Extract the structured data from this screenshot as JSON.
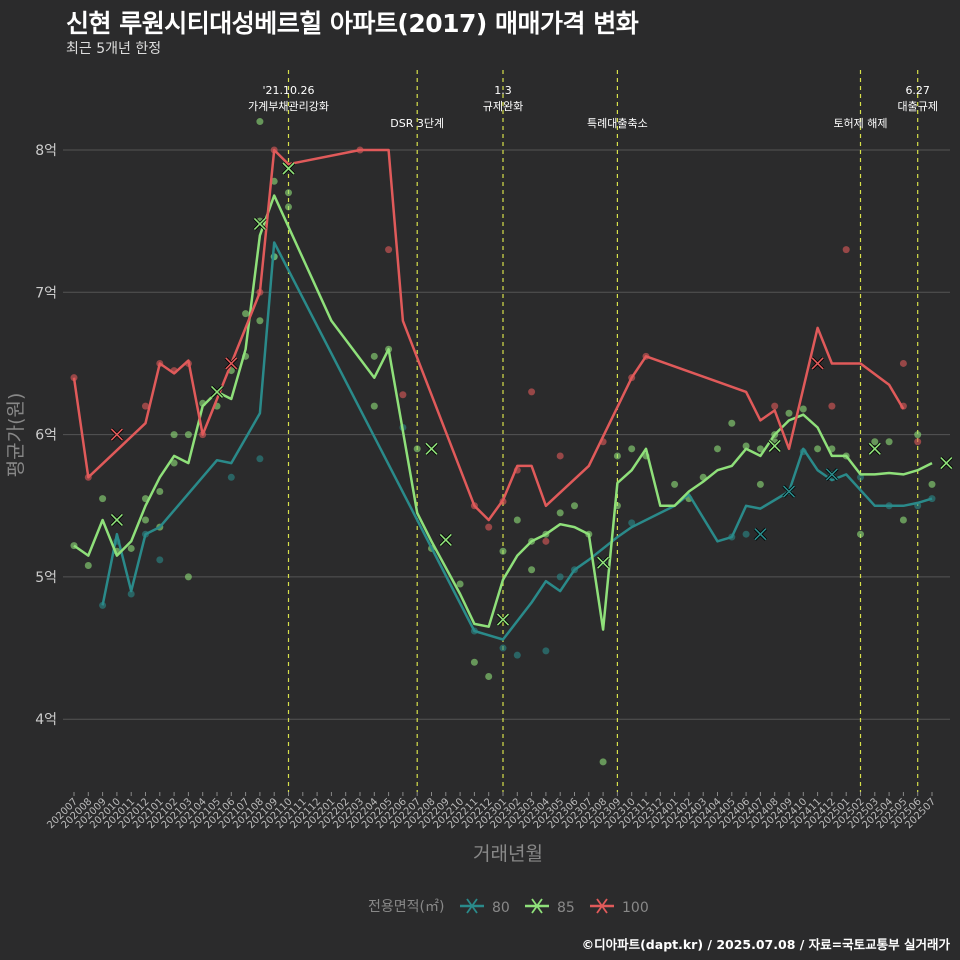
{
  "title": "신현 루원시티대성베르힐 아파트(2017) 매매가격 변화",
  "subtitle": "최근 5개년 한정",
  "caption": "©디아파트(dapt.kr) / 2025.07.08 / 자료=국토교통부 실거래가",
  "colors": {
    "80": "#2a8a8a",
    "85": "#8fe07a",
    "100": "#e05a5a",
    "vline": "#d7e04a",
    "grid": "#555555"
  },
  "chart_data": {
    "type": "line",
    "title": "신현 루원시티대성베르힐 아파트(2017) 매매가격 변화",
    "subtitle": "최근 5개년 한정",
    "xlabel": "거래년월",
    "ylabel": "평균가(원)",
    "ylim": [
      3.5,
      8.5
    ],
    "y_ticks": [
      4,
      5,
      6,
      7,
      8
    ],
    "y_tick_labels": [
      "4억",
      "5억",
      "6억",
      "7억",
      "8억"
    ],
    "x": [
      "202007",
      "202008",
      "202009",
      "202010",
      "202011",
      "202012",
      "202101",
      "202102",
      "202103",
      "202104",
      "202105",
      "202106",
      "202107",
      "202108",
      "202109",
      "202110",
      "202111",
      "202112",
      "202201",
      "202202",
      "202203",
      "202204",
      "202205",
      "202206",
      "202207",
      "202208",
      "202209",
      "202210",
      "202211",
      "202212",
      "202301",
      "202302",
      "202303",
      "202304",
      "202305",
      "202306",
      "202307",
      "202308",
      "202309",
      "202310",
      "202311",
      "202312",
      "202401",
      "202402",
      "202403",
      "202404",
      "202405",
      "202406",
      "202407",
      "202408",
      "202409",
      "202410",
      "202411",
      "202412",
      "202501",
      "202502",
      "202503",
      "202504",
      "202505",
      "202506",
      "202507"
    ],
    "legend": {
      "title": "전용면적(㎡)",
      "position": "bottom"
    },
    "series": [
      {
        "name": "80",
        "points": [
          [
            3,
            4.8
          ],
          [
            4,
            5.3
          ],
          [
            5,
            4.9
          ],
          [
            6,
            5.3
          ],
          [
            7,
            5.35
          ],
          [
            11,
            5.82
          ],
          [
            12,
            5.8
          ],
          [
            14,
            6.15
          ],
          [
            15,
            7.35
          ],
          [
            29,
            4.62
          ],
          [
            31,
            4.56
          ],
          [
            33,
            4.82
          ],
          [
            34,
            4.97
          ],
          [
            35,
            4.9
          ],
          [
            36,
            5.05
          ],
          [
            37,
            5.12
          ],
          [
            39,
            5.28
          ],
          [
            40,
            5.35
          ],
          [
            42,
            5.45
          ],
          [
            43,
            5.5
          ],
          [
            44,
            5.58
          ],
          [
            46,
            5.25
          ],
          [
            47,
            5.28
          ],
          [
            48,
            5.5
          ],
          [
            49,
            5.48
          ],
          [
            51,
            5.6
          ],
          [
            52,
            5.9
          ],
          [
            53,
            5.75
          ],
          [
            54,
            5.68
          ],
          [
            55,
            5.72
          ],
          [
            57,
            5.5
          ],
          [
            58,
            5.5
          ],
          [
            59,
            5.5
          ],
          [
            60,
            5.52
          ],
          [
            61,
            5.55
          ]
        ]
      },
      {
        "name": "85",
        "points": [
          [
            1,
            5.22
          ],
          [
            2,
            5.15
          ],
          [
            3,
            5.4
          ],
          [
            4,
            5.15
          ],
          [
            5,
            5.25
          ],
          [
            6,
            5.5
          ],
          [
            7,
            5.7
          ],
          [
            8,
            5.85
          ],
          [
            9,
            5.8
          ],
          [
            10,
            6.2
          ],
          [
            11,
            6.3
          ],
          [
            12,
            6.25
          ],
          [
            13,
            6.6
          ],
          [
            14,
            7.4
          ],
          [
            15,
            7.68
          ],
          [
            19,
            6.8
          ],
          [
            22,
            6.4
          ],
          [
            23,
            6.6
          ],
          [
            25,
            5.45
          ],
          [
            26,
            5.25
          ],
          [
            28,
            4.88
          ],
          [
            29,
            4.67
          ],
          [
            30,
            4.65
          ],
          [
            31,
            4.98
          ],
          [
            32,
            5.15
          ],
          [
            33,
            5.25
          ],
          [
            34,
            5.3
          ],
          [
            35,
            5.37
          ],
          [
            36,
            5.35
          ],
          [
            37,
            5.3
          ],
          [
            38,
            4.63
          ],
          [
            39,
            5.66
          ],
          [
            40,
            5.75
          ],
          [
            41,
            5.9
          ],
          [
            42,
            5.5
          ],
          [
            43,
            5.5
          ],
          [
            44,
            5.6
          ],
          [
            45,
            5.67
          ],
          [
            46,
            5.75
          ],
          [
            47,
            5.78
          ],
          [
            48,
            5.9
          ],
          [
            49,
            5.85
          ],
          [
            50,
            6.0
          ],
          [
            51,
            6.1
          ],
          [
            52,
            6.14
          ],
          [
            53,
            6.05
          ],
          [
            54,
            5.85
          ],
          [
            55,
            5.85
          ],
          [
            56,
            5.72
          ],
          [
            57,
            5.72
          ],
          [
            58,
            5.73
          ],
          [
            59,
            5.72
          ],
          [
            60,
            5.75
          ],
          [
            61,
            5.8
          ]
        ]
      },
      {
        "name": "100",
        "points": [
          [
            1,
            6.4
          ],
          [
            2,
            5.7
          ],
          [
            6,
            6.08
          ],
          [
            7,
            6.5
          ],
          [
            8,
            6.43
          ],
          [
            9,
            6.52
          ],
          [
            10,
            6.0
          ],
          [
            14,
            7.0
          ],
          [
            15,
            8.0
          ],
          [
            16,
            7.9
          ],
          [
            21,
            8.0
          ],
          [
            23,
            8.0
          ],
          [
            24,
            6.8
          ],
          [
            29,
            5.5
          ],
          [
            30,
            5.4
          ],
          [
            31,
            5.54
          ],
          [
            32,
            5.78
          ],
          [
            33,
            5.78
          ],
          [
            34,
            5.5
          ],
          [
            37,
            5.78
          ],
          [
            40,
            6.4
          ],
          [
            41,
            6.55
          ],
          [
            48,
            6.3
          ],
          [
            49,
            6.1
          ],
          [
            50,
            6.17
          ],
          [
            51,
            5.9
          ],
          [
            53,
            6.75
          ],
          [
            54,
            6.5
          ],
          [
            56,
            6.5
          ],
          [
            58,
            6.35
          ],
          [
            59,
            6.18
          ]
        ]
      }
    ],
    "scatter": {
      "80": [
        [
          3,
          4.8
        ],
        [
          4,
          5.25
        ],
        [
          5,
          4.88
        ],
        [
          6,
          5.3
        ],
        [
          7,
          5.12
        ],
        [
          12,
          5.7
        ],
        [
          14,
          5.83
        ],
        [
          15,
          7.25
        ],
        [
          24,
          6.05
        ],
        [
          29,
          4.62
        ],
        [
          31,
          4.5
        ],
        [
          32,
          4.45
        ],
        [
          34,
          4.48
        ],
        [
          35,
          5.0
        ],
        [
          36,
          5.05
        ],
        [
          38,
          5.1
        ],
        [
          40,
          5.38
        ],
        [
          47,
          5.28
        ],
        [
          48,
          5.3
        ],
        [
          51,
          5.6
        ],
        [
          52,
          5.88
        ],
        [
          54,
          5.72
        ],
        [
          56,
          5.7
        ],
        [
          58,
          5.5
        ],
        [
          60,
          5.5
        ],
        [
          61,
          5.55
        ]
      ],
      "85": [
        [
          1,
          5.22
        ],
        [
          2,
          5.08
        ],
        [
          3,
          5.55
        ],
        [
          4,
          5.18
        ],
        [
          5,
          5.2
        ],
        [
          6,
          5.55
        ],
        [
          7,
          5.6
        ],
        [
          8,
          6.0
        ],
        [
          9,
          6.0
        ],
        [
          10,
          6.22
        ],
        [
          11,
          6.2
        ],
        [
          12,
          6.45
        ],
        [
          13,
          6.55
        ],
        [
          14,
          7.5
        ],
        [
          15,
          7.78
        ],
        [
          8,
          5.8
        ],
        [
          9,
          5.0
        ],
        [
          7,
          5.35
        ],
        [
          6,
          5.4
        ],
        [
          13,
          6.85
        ],
        [
          14,
          6.8
        ],
        [
          16,
          7.6
        ],
        [
          15,
          7.25
        ],
        [
          22,
          6.55
        ],
        [
          22,
          6.2
        ],
        [
          23,
          6.6
        ],
        [
          25,
          5.9
        ],
        [
          26,
          5.2
        ],
        [
          28,
          4.95
        ],
        [
          29,
          4.4
        ],
        [
          30,
          4.3
        ],
        [
          31,
          5.18
        ],
        [
          32,
          5.4
        ],
        [
          33,
          5.25
        ],
        [
          34,
          5.3
        ],
        [
          35,
          5.45
        ],
        [
          36,
          5.5
        ],
        [
          37,
          5.3
        ],
        [
          38,
          3.7
        ],
        [
          39,
          5.85
        ],
        [
          40,
          5.9
        ],
        [
          41,
          5.85
        ],
        [
          43,
          5.65
        ],
        [
          44,
          5.55
        ],
        [
          45,
          5.7
        ],
        [
          46,
          5.9
        ],
        [
          47,
          6.08
        ],
        [
          48,
          5.92
        ],
        [
          49,
          5.9
        ],
        [
          50,
          5.95
        ],
        [
          51,
          6.15
        ],
        [
          52,
          6.18
        ],
        [
          53,
          5.9
        ],
        [
          54,
          5.9
        ],
        [
          55,
          5.85
        ],
        [
          56,
          5.3
        ],
        [
          57,
          5.95
        ],
        [
          58,
          5.95
        ],
        [
          59,
          5.4
        ],
        [
          60,
          6.0
        ],
        [
          61,
          5.65
        ],
        [
          14,
          8.2
        ],
        [
          16,
          7.7
        ],
        [
          39,
          5.5
        ],
        [
          33,
          5.05
        ],
        [
          49,
          5.65
        ],
        [
          50,
          6.0
        ]
      ],
      "100": [
        [
          1,
          6.4
        ],
        [
          2,
          5.7
        ],
        [
          6,
          6.2
        ],
        [
          7,
          6.5
        ],
        [
          8,
          6.45
        ],
        [
          9,
          6.5
        ],
        [
          10,
          6.0
        ],
        [
          14,
          7.0
        ],
        [
          15,
          8.0
        ],
        [
          21,
          8.0
        ],
        [
          23,
          7.3
        ],
        [
          24,
          6.28
        ],
        [
          29,
          5.5
        ],
        [
          30,
          5.35
        ],
        [
          32,
          5.75
        ],
        [
          33,
          6.3
        ],
        [
          34,
          5.25
        ],
        [
          35,
          5.85
        ],
        [
          38,
          5.95
        ],
        [
          40,
          6.4
        ],
        [
          41,
          6.55
        ],
        [
          50,
          6.2
        ],
        [
          54,
          6.2
        ],
        [
          55,
          7.3
        ],
        [
          59,
          6.5
        ],
        [
          59,
          6.2
        ],
        [
          60,
          5.95
        ],
        [
          31,
          5.53
        ]
      ]
    },
    "x_markers": {
      "80": [
        [
          49,
          5.3
        ],
        [
          51,
          5.6
        ],
        [
          54,
          5.72
        ]
      ],
      "85": [
        [
          4,
          5.4
        ],
        [
          11,
          6.3
        ],
        [
          14,
          7.48
        ],
        [
          16,
          7.87
        ],
        [
          26,
          5.9
        ],
        [
          27,
          5.26
        ],
        [
          31,
          4.7
        ],
        [
          38,
          5.1
        ],
        [
          50,
          5.92
        ],
        [
          57,
          5.9
        ],
        [
          62,
          5.8
        ]
      ],
      "100": [
        [
          4,
          6.0
        ],
        [
          12,
          6.5
        ],
        [
          53,
          6.5
        ]
      ]
    },
    "vlines": [
      {
        "x": 16,
        "label": "'21.10.26\n가계부채관리강화"
      },
      {
        "x": 25,
        "label": "DSR 3단계"
      },
      {
        "x": 31,
        "label": "1.3\n규제완화"
      },
      {
        "x": 39,
        "label": "특례대출축소"
      },
      {
        "x": 56,
        "label": "토허제 해제"
      },
      {
        "x": 60,
        "label": "6.27\n대출규제"
      }
    ]
  }
}
